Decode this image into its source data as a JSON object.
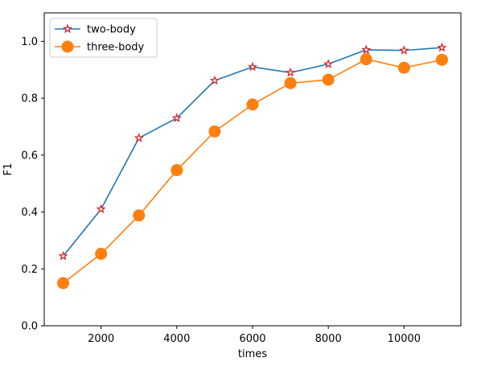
{
  "chart_data": {
    "type": "line",
    "xlabel": "times",
    "ylabel": "F1",
    "xlim": [
      500,
      11500
    ],
    "ylim": [
      0,
      1.1
    ],
    "x_ticks": [
      2000,
      4000,
      6000,
      8000,
      10000
    ],
    "y_ticks": [
      0.0,
      0.2,
      0.4,
      0.6,
      0.8,
      1.0
    ],
    "x_tick_labels": [
      "2000",
      "4000",
      "6000",
      "8000",
      "10000"
    ],
    "y_tick_labels": [
      "0.0",
      "0.2",
      "0.4",
      "0.6",
      "0.8",
      "1.0"
    ],
    "grid": false,
    "legend_position": "top-left",
    "x": [
      1000,
      2000,
      3000,
      4000,
      5000,
      6000,
      7000,
      8000,
      9000,
      10000,
      11000
    ],
    "series": [
      {
        "name": "two-body",
        "values": [
          0.245,
          0.41,
          0.66,
          0.73,
          0.862,
          0.91,
          0.89,
          0.92,
          0.97,
          0.968,
          0.978
        ],
        "color": "#1f77b4",
        "marker": "star",
        "marker_color": "#d62728"
      },
      {
        "name": "three-body",
        "values": [
          0.15,
          0.253,
          0.388,
          0.547,
          0.683,
          0.778,
          0.853,
          0.865,
          0.937,
          0.907,
          0.935
        ],
        "color": "#ff7f0e",
        "marker": "circle",
        "marker_color": "#ff7f0e"
      }
    ]
  }
}
